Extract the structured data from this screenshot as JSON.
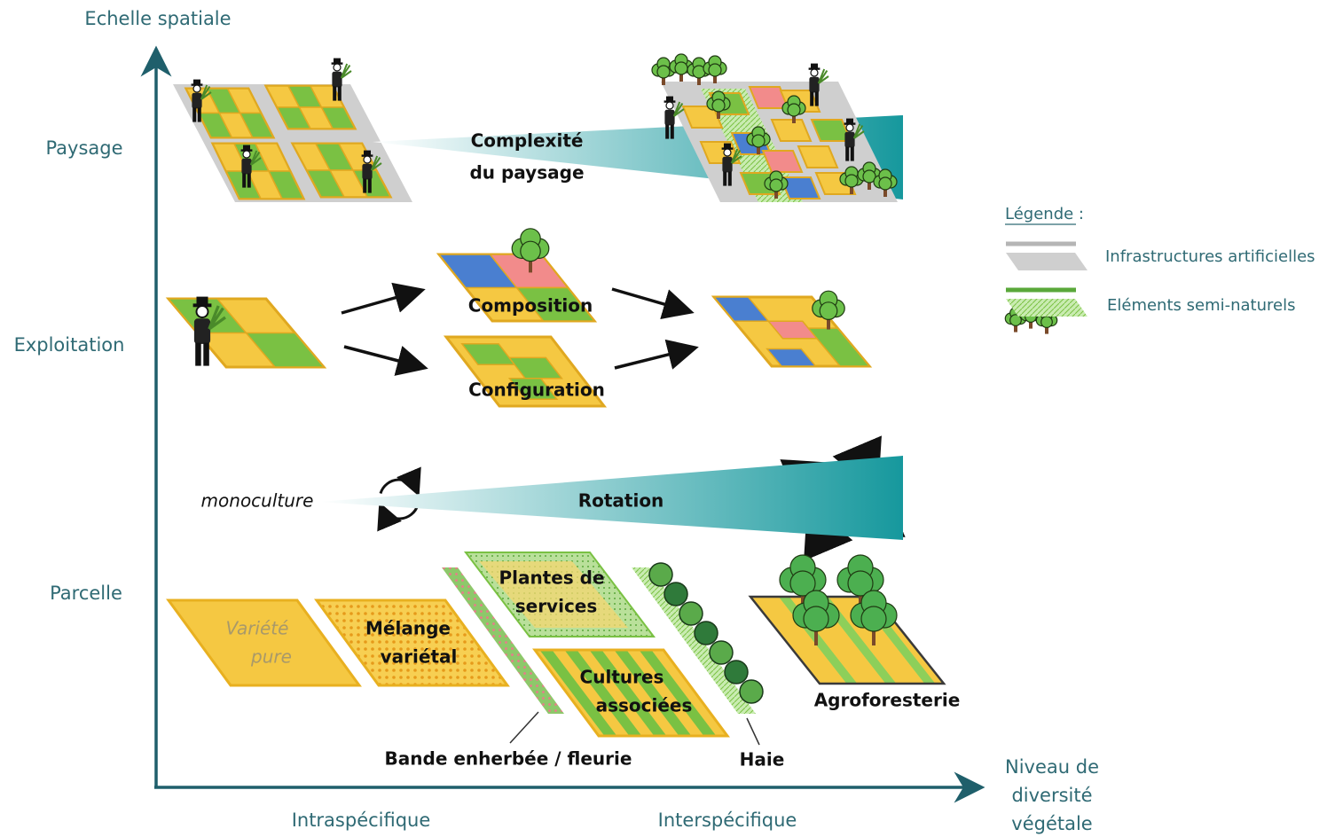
{
  "axes": {
    "y_label": "Echelle spatiale",
    "x_label": [
      "Niveau de",
      "diversité",
      "végétale"
    ],
    "levels": [
      "Paysage",
      "Exploitation",
      "Parcelle"
    ],
    "x_categories": [
      "Intraspécifique",
      "Interspécifique"
    ]
  },
  "landscape": {
    "gradient_label": [
      "Complexité",
      "du paysage"
    ]
  },
  "farm": {
    "composition": "Composition",
    "configuration": "Configuration"
  },
  "rotation": {
    "start": "monoculture",
    "label": "Rotation"
  },
  "plot": {
    "pure_variety": [
      "Variété",
      "pure"
    ],
    "varietal_mix": [
      "Mélange",
      "variétal"
    ],
    "service_plants": [
      "Plantes de",
      "services"
    ],
    "intercropping": [
      "Cultures",
      "associées"
    ],
    "grass_strip": "Bande enherbée / fleurie",
    "hedge": "Haie",
    "agroforestry": "Agroforesterie"
  },
  "legend": {
    "title": "Légende :",
    "items": [
      "Infrastructures artificielles",
      "Eléments semi-naturels"
    ]
  }
}
